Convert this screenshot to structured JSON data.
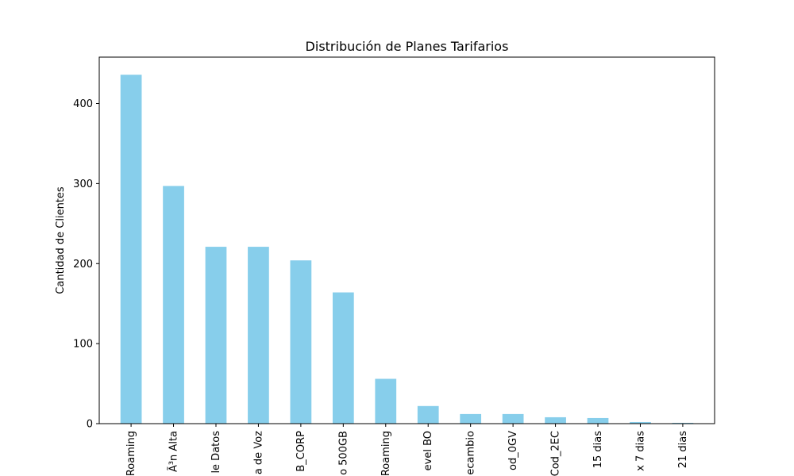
{
  "chart_data": {
    "type": "bar",
    "title": "Distribución de Planes Tarifarios",
    "xlabel": "",
    "ylabel": "Cantidad de Clientes",
    "ylim": [
      0,
      458
    ],
    "yticks": [
      0,
      100,
      200,
      300,
      400
    ],
    "grid": false,
    "legend": "none",
    "bar_color": "#87ceeb",
    "categories": [
      "Roaming",
      "Ã³n Alta",
      "le Datos",
      "a de Voz",
      "B_CORP",
      "o 500GB",
      "Roaming",
      "evel BO",
      "ecambio",
      "od_0GV",
      "Cod_2EC",
      "15 dias",
      "x 7 dias",
      "21 dias"
    ],
    "values": [
      436,
      297,
      221,
      221,
      204,
      164,
      56,
      22,
      12,
      12,
      8,
      7,
      2,
      1
    ]
  }
}
